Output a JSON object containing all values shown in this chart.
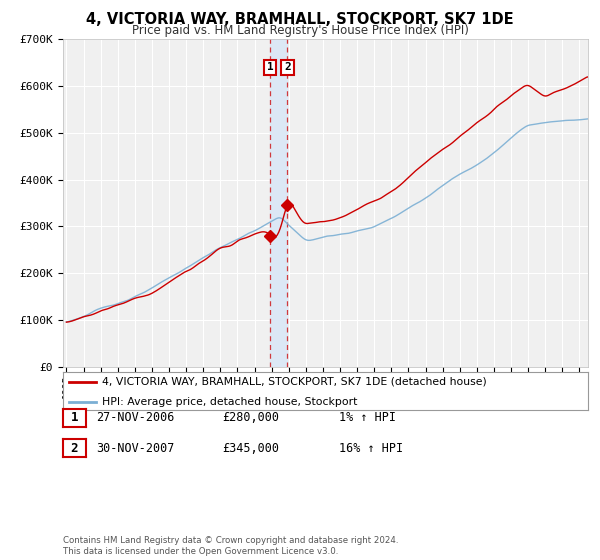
{
  "title": "4, VICTORIA WAY, BRAMHALL, STOCKPORT, SK7 1DE",
  "subtitle": "Price paid vs. HM Land Registry's House Price Index (HPI)",
  "hpi_label": "HPI: Average price, detached house, Stockport",
  "property_label": "4, VICTORIA WAY, BRAMHALL, STOCKPORT, SK7 1DE (detached house)",
  "transaction1_date": "27-NOV-2006",
  "transaction1_price": 280000,
  "transaction1_hpi_text": "1% ↑ HPI",
  "transaction2_date": "30-NOV-2007",
  "transaction2_price": 345000,
  "transaction2_hpi_text": "16% ↑ HPI",
  "transaction1_x": 2006.92,
  "transaction2_x": 2007.92,
  "ylim": [
    0,
    700000
  ],
  "xlim": [
    1994.8,
    2025.5
  ],
  "red_color": "#cc0000",
  "blue_color": "#7BAFD4",
  "background_color": "#f0f0f0",
  "vband_color": "#dce8f5",
  "grid_color": "#ffffff",
  "footer": "Contains HM Land Registry data © Crown copyright and database right 2024.\nThis data is licensed under the Open Government Licence v3.0."
}
